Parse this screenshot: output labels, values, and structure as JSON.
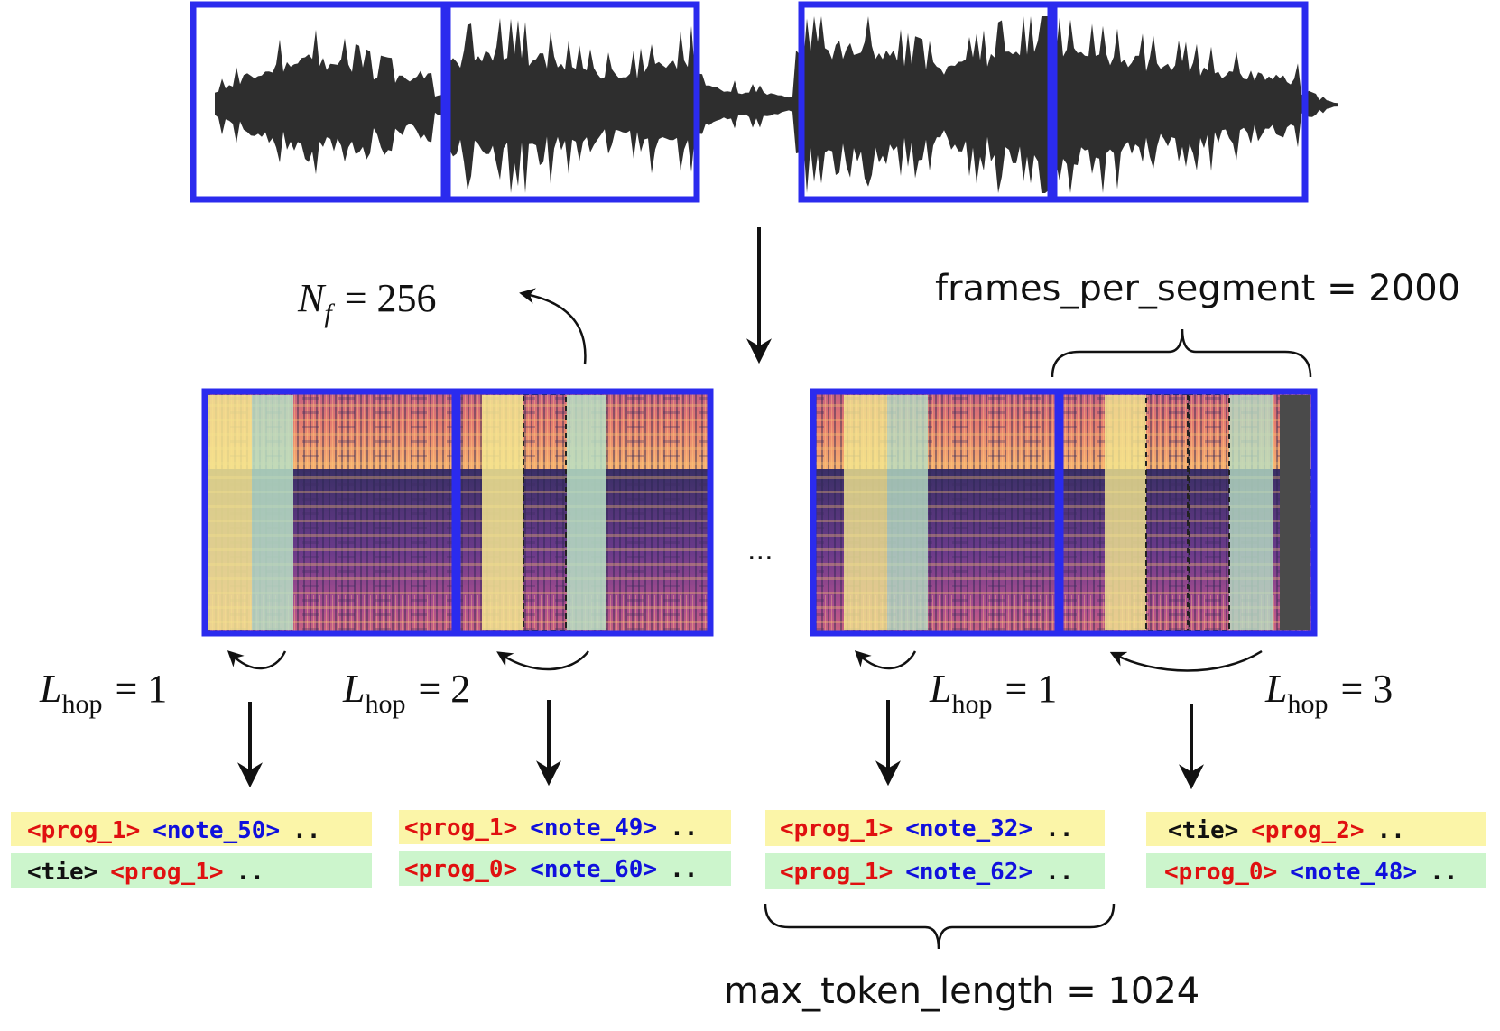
{
  "colors": {
    "segment_box": "#2b2bee",
    "token_bg_top": "#fbf5a8",
    "token_bg_bottom": "#ccf5cc",
    "prog_token": "#e01010",
    "note_token": "#1010dd",
    "tie_token": "#111111",
    "waveform": "#2e2e2e"
  },
  "labels": {
    "nf": {
      "base": "N",
      "sub": "f",
      "eq": "= 256"
    },
    "frames_per_segment": "frames_per_segment = 2000",
    "max_token_length": "max_token_length = 1024",
    "ellipsis": "...",
    "hops": [
      {
        "base": "L",
        "sub": "hop",
        "eq": "= 1"
      },
      {
        "base": "L",
        "sub": "hop",
        "eq": "= 2"
      },
      {
        "base": "L",
        "sub": "hop",
        "eq": "= 1"
      },
      {
        "base": "L",
        "sub": "hop",
        "eq": "= 3"
      }
    ]
  },
  "token_groups": [
    {
      "top": [
        {
          "text": "<prog_1>",
          "kind": "prog"
        },
        {
          "text": "<note_50>",
          "kind": "note"
        },
        {
          "text": "..",
          "kind": "tie"
        }
      ],
      "bottom": [
        {
          "text": "<tie>",
          "kind": "tie"
        },
        {
          "text": "<prog_1>",
          "kind": "prog"
        },
        {
          "text": "..",
          "kind": "tie"
        }
      ]
    },
    {
      "top": [
        {
          "text": "<prog_1>",
          "kind": "prog"
        },
        {
          "text": "<note_49>",
          "kind": "note"
        },
        {
          "text": "..",
          "kind": "tie"
        }
      ],
      "bottom": [
        {
          "text": "<prog_0>",
          "kind": "prog"
        },
        {
          "text": "<note_60>",
          "kind": "note"
        },
        {
          "text": "..",
          "kind": "tie"
        }
      ]
    },
    {
      "top": [
        {
          "text": "<prog_1>",
          "kind": "prog"
        },
        {
          "text": "<note_32>",
          "kind": "note"
        },
        {
          "text": "..",
          "kind": "tie"
        }
      ],
      "bottom": [
        {
          "text": "<prog_1>",
          "kind": "prog"
        },
        {
          "text": "<note_62>",
          "kind": "note"
        },
        {
          "text": "..",
          "kind": "tie"
        }
      ]
    },
    {
      "top": [
        {
          "text": "<tie>",
          "kind": "tie"
        },
        {
          "text": "<prog_2>",
          "kind": "prog"
        },
        {
          "text": "..",
          "kind": "tie"
        }
      ],
      "bottom": [
        {
          "text": "<prog_0>",
          "kind": "prog"
        },
        {
          "text": "<note_48>",
          "kind": "note"
        },
        {
          "text": "..",
          "kind": "tie"
        }
      ]
    }
  ]
}
